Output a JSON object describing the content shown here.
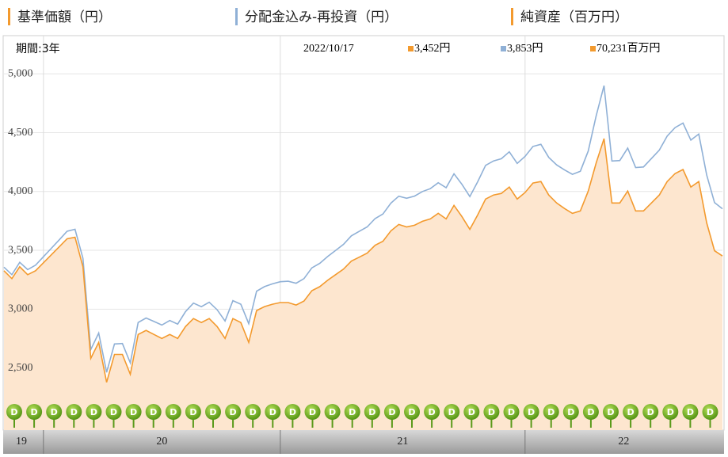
{
  "chart_data": {
    "type": "line",
    "legend": [
      "基準価額（円）",
      "分配金込み-再投資（円）",
      "純資産（百万円）"
    ],
    "legend_colors": [
      "#f39a2e",
      "#8fb0d6",
      "#f39a2e"
    ],
    "period": "期間:3年",
    "readout_date": "2022/10/17",
    "readout": [
      "3,452円",
      "3,853円",
      "70,231百万円"
    ],
    "dividend_marker": "D",
    "categories": [
      "19",
      null,
      null,
      null,
      null,
      "20",
      null,
      null,
      null,
      null,
      null,
      null,
      null,
      null,
      null,
      null,
      null,
      null,
      null,
      null,
      null,
      null,
      null,
      null,
      null,
      null,
      null,
      null,
      null,
      null,
      null,
      null,
      null,
      null,
      null,
      "21",
      null,
      null,
      null,
      null,
      null,
      null,
      null,
      null,
      null,
      null,
      null,
      null,
      null,
      null,
      null,
      null,
      null,
      null,
      null,
      null,
      null,
      null,
      null,
      null,
      null,
      null,
      null,
      null,
      null,
      null,
      "22",
      null,
      null,
      null,
      null,
      null,
      null,
      null,
      null,
      null,
      null,
      null,
      null,
      null,
      null,
      null,
      null,
      null,
      null,
      null,
      null,
      null,
      null,
      null,
      null,
      null
    ],
    "series": [
      {
        "name": "基準価額（円）",
        "color": "#f39a2e",
        "fill": "#fde6cf",
        "values": [
          3327,
          3259,
          3360,
          3293,
          3327,
          3394,
          3462,
          3530,
          3598,
          3611,
          3360,
          2581,
          2717,
          2378,
          2615,
          2615,
          2446,
          2785,
          2819,
          2785,
          2751,
          2785,
          2751,
          2852,
          2920,
          2886,
          2920,
          2852,
          2751,
          2920,
          2886,
          2717,
          2988,
          3022,
          3042,
          3056,
          3056,
          3035,
          3069,
          3157,
          3191,
          3245,
          3293,
          3340,
          3408,
          3442,
          3476,
          3543,
          3577,
          3665,
          3720,
          3699,
          3713,
          3747,
          3767,
          3814,
          3767,
          3882,
          3787,
          3679,
          3801,
          3936,
          3970,
          3984,
          4038,
          3936,
          3991,
          4072,
          4085,
          3970,
          3902,
          3855,
          3814,
          3835,
          4004,
          4241,
          4450,
          3902,
          3902,
          4004,
          3835,
          3835,
          3902,
          3970,
          4085,
          4153,
          4187,
          4038,
          4085,
          3733,
          3496,
          3452
        ]
      },
      {
        "name": "分配金込み-再投資（円）",
        "color": "#8fb0d6",
        "values": [
          3357,
          3293,
          3398,
          3336,
          3374,
          3445,
          3517,
          3589,
          3662,
          3679,
          3432,
          2657,
          2797,
          2463,
          2704,
          2708,
          2543,
          2886,
          2925,
          2895,
          2865,
          2903,
          2873,
          2979,
          3051,
          3021,
          3059,
          2995,
          2899,
          3072,
          3042,
          2877,
          3152,
          3191,
          3215,
          3233,
          3237,
          3220,
          3259,
          3351,
          3389,
          3447,
          3499,
          3551,
          3623,
          3661,
          3699,
          3770,
          3809,
          3901,
          3960,
          3943,
          3961,
          4000,
          4024,
          4075,
          4032,
          4151,
          4061,
          3957,
          4083,
          4222,
          4260,
          4279,
          4337,
          4239,
          4298,
          4383,
          4401,
          4290,
          4226,
          4183,
          4146,
          4172,
          4345,
          4641,
          4900,
          4259,
          4263,
          4369,
          4204,
          4209,
          4280,
          4352,
          4471,
          4543,
          4582,
          4437,
          4488,
          4140,
          3906,
          3853
        ]
      }
    ],
    "ylim": [
      1972,
      5325
    ],
    "yticks": [
      {
        "value": 2500,
        "label": "2,500"
      },
      {
        "value": 3000,
        "label": "3,000"
      },
      {
        "value": 3500,
        "label": "3,500"
      },
      {
        "value": 4000,
        "label": "4,000"
      },
      {
        "value": 4500,
        "label": "4,500"
      },
      {
        "value": 5000,
        "label": "5,000"
      }
    ],
    "grid": true
  }
}
